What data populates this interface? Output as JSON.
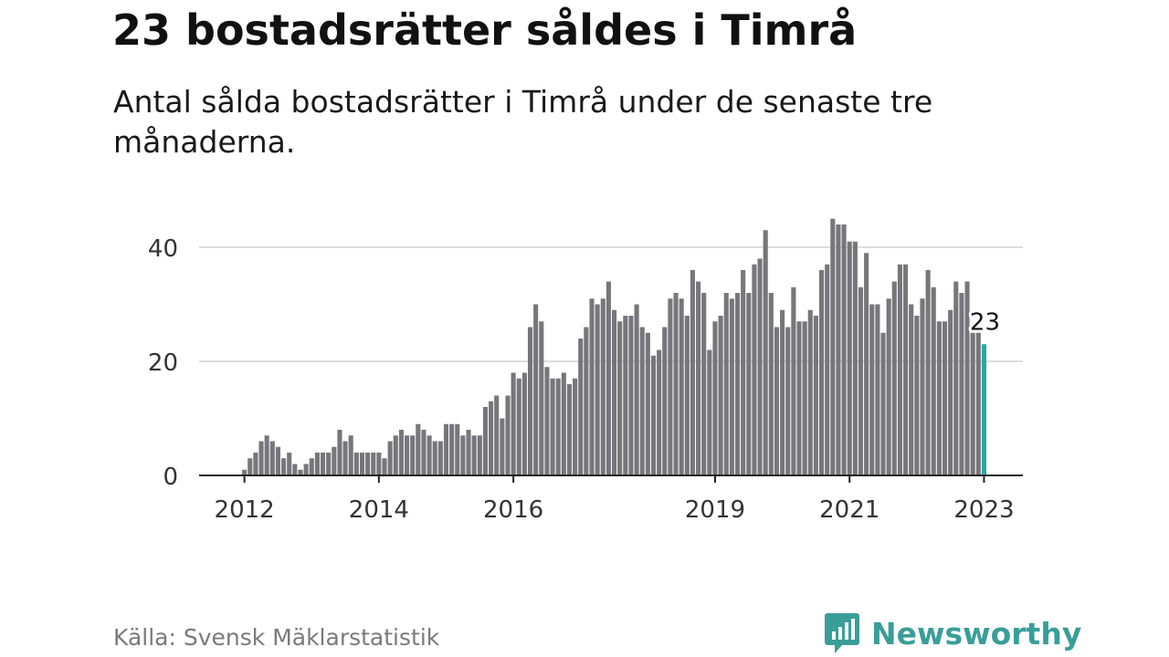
{
  "title": "23 bostadsrätter såldes i Timrå",
  "subtitle": "Antal sålda bostadsrätter i Timrå under de senaste tre månaderna.",
  "source": "Källa: Svensk Mäklarstatistik",
  "brand": "Newsworthy",
  "colors": {
    "bar": "#76767b",
    "highlight": "#2aa79f",
    "grid": "#dddddd",
    "axis": "#222222",
    "brand": "#3a9e98"
  },
  "chart_data": {
    "type": "bar",
    "start": "2011-12",
    "unit": "month",
    "x_ticks": [
      "2012",
      "2014",
      "2016",
      "2019",
      "2021",
      "2023"
    ],
    "y_ticks": [
      0,
      20,
      40
    ],
    "ylim": [
      0,
      48
    ],
    "grid": true,
    "highlight_label": "23",
    "values": [
      0,
      1,
      3,
      4,
      6,
      7,
      6,
      5,
      3,
      4,
      2,
      1,
      2,
      3,
      4,
      4,
      4,
      5,
      8,
      6,
      7,
      4,
      4,
      4,
      4,
      4,
      3,
      6,
      7,
      8,
      7,
      7,
      9,
      8,
      7,
      6,
      6,
      9,
      9,
      9,
      7,
      8,
      7,
      7,
      12,
      13,
      14,
      10,
      14,
      18,
      17,
      18,
      26,
      30,
      27,
      19,
      17,
      17,
      18,
      16,
      17,
      24,
      26,
      31,
      30,
      31,
      34,
      29,
      27,
      28,
      28,
      30,
      26,
      25,
      21,
      22,
      26,
      31,
      32,
      31,
      28,
      36,
      34,
      32,
      22,
      27,
      28,
      32,
      31,
      32,
      36,
      32,
      37,
      38,
      43,
      32,
      26,
      29,
      26,
      33,
      27,
      27,
      29,
      28,
      36,
      37,
      45,
      44,
      44,
      41,
      41,
      33,
      39,
      30,
      30,
      25,
      31,
      34,
      37,
      37,
      30,
      28,
      31,
      36,
      33,
      27,
      27,
      29,
      34,
      32,
      34,
      25,
      25,
      23
    ]
  }
}
